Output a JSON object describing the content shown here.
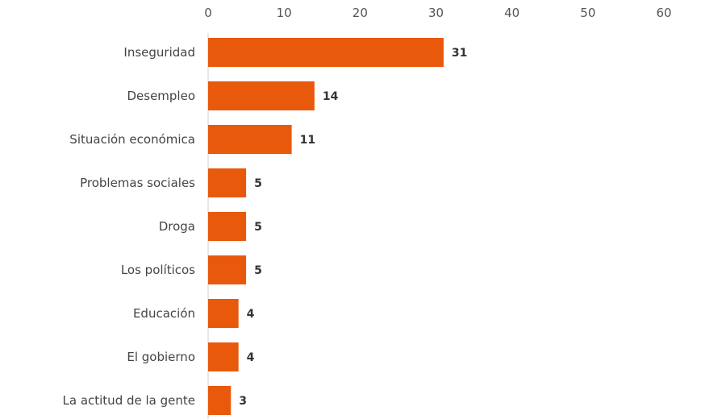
{
  "chart_data": {
    "type": "bar",
    "orientation": "horizontal",
    "title": "",
    "xlabel": "",
    "ylabel": "",
    "xlim": [
      0,
      60
    ],
    "x_ticks": [
      0,
      10,
      20,
      30,
      40,
      50,
      60
    ],
    "x_axis_position": "top",
    "grid": false,
    "legend": "none",
    "categories": [
      "Inseguridad",
      "Desempleo",
      "Situación económica",
      "Problemas sociales",
      "Droga",
      "Los políticos",
      "Educación",
      "El gobierno",
      "La actitud de la gente"
    ],
    "values": [
      31,
      14,
      11,
      5,
      5,
      5,
      4,
      4,
      3
    ],
    "bar_color": "#e8590c",
    "axis_color": "#cccccc"
  }
}
